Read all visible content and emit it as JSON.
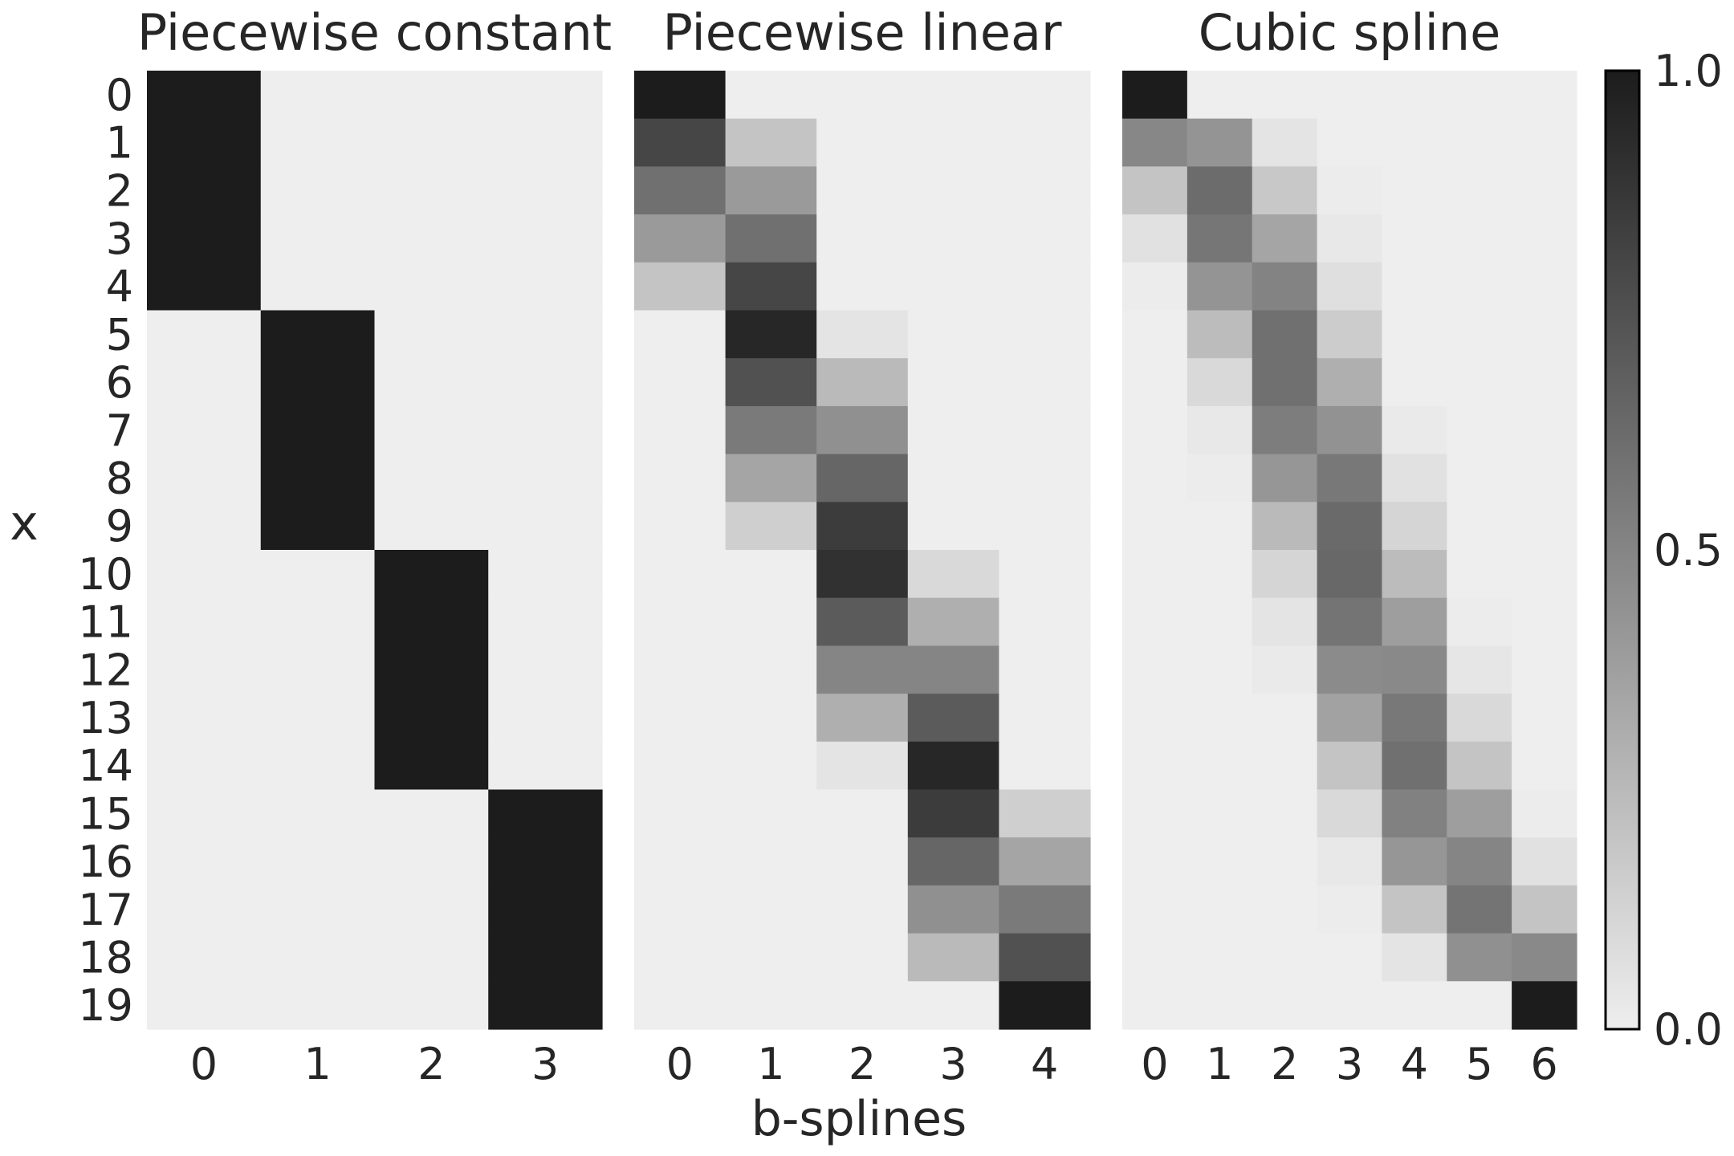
{
  "chart_data": {
    "type": "heatmap",
    "xlabel": "b-splines",
    "ylabel": "x",
    "y_ticks": [
      "0",
      "1",
      "2",
      "3",
      "4",
      "5",
      "6",
      "7",
      "8",
      "9",
      "10",
      "11",
      "12",
      "13",
      "14",
      "15",
      "16",
      "17",
      "18",
      "19"
    ],
    "colormap": {
      "low": "#eeeeee",
      "high": "#1c1c1c"
    },
    "colorbar": {
      "range": [
        0.0,
        1.0
      ],
      "ticks": [
        "0.0",
        "0.5",
        "1.0"
      ]
    },
    "panels": [
      {
        "title": "Piecewise constant",
        "x_ticks": [
          "0",
          "1",
          "2",
          "3"
        ],
        "values": [
          [
            1,
            0,
            0,
            0
          ],
          [
            1,
            0,
            0,
            0
          ],
          [
            1,
            0,
            0,
            0
          ],
          [
            1,
            0,
            0,
            0
          ],
          [
            1,
            0,
            0,
            0
          ],
          [
            0,
            1,
            0,
            0
          ],
          [
            0,
            1,
            0,
            0
          ],
          [
            0,
            1,
            0,
            0
          ],
          [
            0,
            1,
            0,
            0
          ],
          [
            0,
            1,
            0,
            0
          ],
          [
            0,
            0,
            1,
            0
          ],
          [
            0,
            0,
            1,
            0
          ],
          [
            0,
            0,
            1,
            0
          ],
          [
            0,
            0,
            1,
            0
          ],
          [
            0,
            0,
            1,
            0
          ],
          [
            0,
            0,
            0,
            1
          ],
          [
            0,
            0,
            0,
            1
          ],
          [
            0,
            0,
            0,
            1
          ],
          [
            0,
            0,
            0,
            1
          ],
          [
            0,
            0,
            0,
            1
          ]
        ]
      },
      {
        "title": "Piecewise linear",
        "x_ticks": [
          "0",
          "1",
          "2",
          "3",
          "4"
        ],
        "values": [
          [
            1.0,
            0,
            0,
            0,
            0
          ],
          [
            0.8,
            0.2,
            0,
            0,
            0
          ],
          [
            0.6,
            0.4,
            0,
            0,
            0
          ],
          [
            0.4,
            0.6,
            0,
            0,
            0
          ],
          [
            0.2,
            0.8,
            0,
            0,
            0
          ],
          [
            0,
            0.95,
            0.05,
            0,
            0
          ],
          [
            0,
            0.75,
            0.25,
            0,
            0
          ],
          [
            0,
            0.55,
            0.45,
            0,
            0
          ],
          [
            0,
            0.35,
            0.65,
            0,
            0
          ],
          [
            0,
            0.15,
            0.85,
            0,
            0
          ],
          [
            0,
            0,
            0.9,
            0.1,
            0
          ],
          [
            0,
            0,
            0.7,
            0.3,
            0
          ],
          [
            0,
            0,
            0.5,
            0.5,
            0
          ],
          [
            0,
            0,
            0.3,
            0.7,
            0
          ],
          [
            0,
            0,
            0.05,
            0.95,
            0
          ],
          [
            0,
            0,
            0,
            0.85,
            0.15
          ],
          [
            0,
            0,
            0,
            0.65,
            0.35
          ],
          [
            0,
            0,
            0,
            0.45,
            0.55
          ],
          [
            0,
            0,
            0,
            0.25,
            0.75
          ],
          [
            0,
            0,
            0,
            0,
            1.0
          ]
        ]
      },
      {
        "title": "Cubic spline",
        "x_ticks": [
          "0",
          "1",
          "2",
          "3",
          "4",
          "5",
          "6"
        ],
        "values": [
          [
            1.0,
            0,
            0,
            0,
            0,
            0,
            0
          ],
          [
            0.49,
            0.43,
            0.05,
            0,
            0,
            0,
            0
          ],
          [
            0.2,
            0.62,
            0.18,
            0.01,
            0,
            0,
            0
          ],
          [
            0.06,
            0.57,
            0.35,
            0.03,
            0,
            0,
            0
          ],
          [
            0.01,
            0.43,
            0.51,
            0.07,
            0,
            0,
            0
          ],
          [
            0,
            0.24,
            0.6,
            0.16,
            0,
            0,
            0
          ],
          [
            0,
            0.1,
            0.6,
            0.3,
            0,
            0,
            0
          ],
          [
            0,
            0.03,
            0.54,
            0.44,
            0.02,
            0,
            0
          ],
          [
            0,
            0.01,
            0.42,
            0.56,
            0.06,
            0,
            0
          ],
          [
            0,
            0,
            0.25,
            0.63,
            0.12,
            0,
            0
          ],
          [
            0,
            0,
            0.12,
            0.64,
            0.24,
            0,
            0
          ],
          [
            0,
            0,
            0.05,
            0.58,
            0.38,
            0.01,
            0
          ],
          [
            0,
            0,
            0.02,
            0.47,
            0.48,
            0.04,
            0
          ],
          [
            0,
            0,
            0,
            0.36,
            0.56,
            0.1,
            0
          ],
          [
            0,
            0,
            0,
            0.2,
            0.6,
            0.2,
            0
          ],
          [
            0,
            0,
            0,
            0.1,
            0.52,
            0.38,
            0.01
          ],
          [
            0,
            0,
            0,
            0.03,
            0.42,
            0.5,
            0.06
          ],
          [
            0,
            0,
            0,
            0.01,
            0.2,
            0.58,
            0.2
          ],
          [
            0,
            0,
            0,
            0,
            0.05,
            0.45,
            0.48
          ],
          [
            0,
            0,
            0,
            0,
            0,
            0,
            1.0
          ]
        ]
      }
    ]
  }
}
